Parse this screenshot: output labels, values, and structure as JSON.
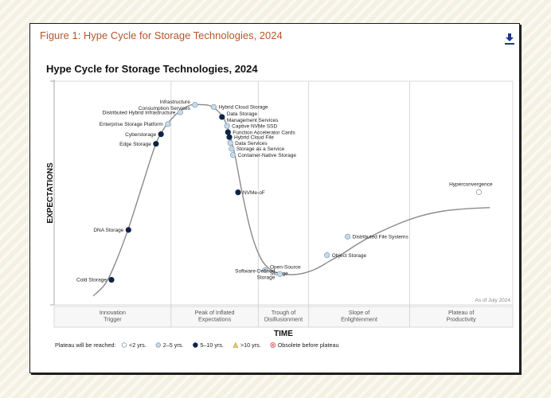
{
  "page": {
    "figure_title": "Figure 1: Hype Cycle for Storage Technologies, 2024",
    "download_icon": "download-icon"
  },
  "chart_data": {
    "type": "scatter",
    "title": "Hype Cycle for Storage Technologies, 2024",
    "xlabel": "TIME",
    "ylabel": "EXPECTATIONS",
    "note": "As of July 2024",
    "xlim": [
      0,
      100
    ],
    "ylim": [
      0,
      100
    ],
    "phases": [
      {
        "label_lines": [
          "Innovation",
          "Trigger"
        ],
        "range": [
          0,
          25.5
        ]
      },
      {
        "label_lines": [
          "Peak of Inflated",
          "Expectations"
        ],
        "range": [
          25.5,
          44.5
        ]
      },
      {
        "label_lines": [
          "Trough of",
          "Disillusionment"
        ],
        "range": [
          44.5,
          55.5
        ]
      },
      {
        "label_lines": [
          "Slope of",
          "Enlightenment"
        ],
        "range": [
          55.5,
          77.5
        ]
      },
      {
        "label_lines": [
          "Plateau of",
          "Productivity"
        ],
        "range": [
          77.5,
          100
        ]
      }
    ],
    "curve": [
      [
        8.5,
        4
      ],
      [
        11,
        9
      ],
      [
        13,
        17
      ],
      [
        16,
        33
      ],
      [
        19,
        52
      ],
      [
        22,
        71
      ],
      [
        24,
        79
      ],
      [
        26,
        84
      ],
      [
        28,
        87.5
      ],
      [
        30,
        89.5
      ],
      [
        32,
        89.5
      ],
      [
        34,
        89
      ],
      [
        36,
        86
      ],
      [
        37.5,
        81
      ],
      [
        39.3,
        68
      ],
      [
        41,
        50
      ],
      [
        43,
        32
      ],
      [
        45,
        21
      ],
      [
        47,
        16
      ],
      [
        49,
        14.2
      ],
      [
        51.5,
        13.5
      ],
      [
        54,
        14
      ],
      [
        57,
        16
      ],
      [
        60,
        19.5
      ],
      [
        63,
        23
      ],
      [
        66,
        27
      ],
      [
        69,
        30.5
      ],
      [
        72,
        33.5
      ],
      [
        76,
        37
      ],
      [
        80,
        39.8
      ],
      [
        85,
        42
      ],
      [
        90,
        43
      ],
      [
        95,
        43.5
      ]
    ],
    "legend": {
      "title": "Plateau will be reached:",
      "items": [
        {
          "key": "lt2",
          "label": "<2 yrs.",
          "marker": "circle",
          "color": "#ffffff"
        },
        {
          "key": "2to5",
          "label": "2–5 yrs.",
          "marker": "circle",
          "color": "#c6dcec"
        },
        {
          "key": "5to10",
          "label": "5–10 yrs.",
          "marker": "circle",
          "color": "#0e2447"
        },
        {
          "key": "gt10",
          "label": ">10 yrs.",
          "marker": "triangle",
          "color": "#e8c96a"
        },
        {
          "key": "obs",
          "label": "Obsolete before plateau",
          "marker": "x-circle",
          "color": "#e06a6a"
        }
      ]
    },
    "points": [
      {
        "name": "Cold Storage",
        "label_lines": [
          "Cold Storage"
        ],
        "x": 12.5,
        "y": 11.2,
        "category": "5to10",
        "anchor": "end"
      },
      {
        "name": "DNA Storage",
        "label_lines": [
          "DNA Storage"
        ],
        "x": 16.2,
        "y": 33.5,
        "category": "5to10",
        "anchor": "end"
      },
      {
        "name": "Edge Storage",
        "label_lines": [
          "Edge Storage"
        ],
        "x": 22.2,
        "y": 72,
        "category": "5to10",
        "anchor": "end"
      },
      {
        "name": "Cyberstorage",
        "label_lines": [
          "Cyberstorage"
        ],
        "x": 23.3,
        "y": 76.3,
        "category": "5to10",
        "anchor": "end"
      },
      {
        "name": "Enterprise Storage Platform",
        "label_lines": [
          "Enterprise Storage Platform"
        ],
        "x": 24.8,
        "y": 80.8,
        "category": "2to5",
        "anchor": "end"
      },
      {
        "name": "Distributed Hybrid Infrastructure",
        "label_lines": [
          "Distributed Hybrid Infrastructure"
        ],
        "x": 27.5,
        "y": 86.1,
        "category": "2to5",
        "anchor": "end"
      },
      {
        "name": "Infrastructure Consumption Services",
        "label_lines": [
          "Infrastructure",
          "Consumption Services"
        ],
        "x": 30.7,
        "y": 89.4,
        "category": "2to5",
        "anchor": "end"
      },
      {
        "name": "Hybrid Cloud Storage",
        "label_lines": [
          "Hybrid Cloud Storage"
        ],
        "x": 34.8,
        "y": 88.5,
        "category": "2to5",
        "anchor": "start"
      },
      {
        "name": "Data Storage Management Services",
        "label_lines": [
          "Data Storage",
          "Management Services"
        ],
        "x": 36.6,
        "y": 84,
        "category": "5to10",
        "anchor": "start"
      },
      {
        "name": "Captive NVMe SSD",
        "label_lines": [
          "Captive NVMe SSD"
        ],
        "x": 37.7,
        "y": 80,
        "category": "2to5",
        "anchor": "start"
      },
      {
        "name": "Function Accelerator Cards",
        "label_lines": [
          "Function Accelerator Cards"
        ],
        "x": 37.9,
        "y": 77.2,
        "category": "5to10",
        "anchor": "start"
      },
      {
        "name": "Hybrid Cloud File",
        "label_lines": [
          "Hybrid Cloud File"
        ],
        "x": 38.2,
        "y": 75,
        "category": "5to10",
        "anchor": "start"
      },
      {
        "name": "Data Services",
        "label_lines": [
          "Data Services"
        ],
        "x": 38.4,
        "y": 72.4,
        "category": "2to5",
        "anchor": "start"
      },
      {
        "name": "Storage as a Service",
        "label_lines": [
          "Storage as a Service"
        ],
        "x": 38.7,
        "y": 69.8,
        "category": "2to5",
        "anchor": "start"
      },
      {
        "name": "Container-Native Storage",
        "label_lines": [
          "Container-Native Storage"
        ],
        "x": 39,
        "y": 67,
        "category": "2to5",
        "anchor": "start"
      },
      {
        "name": "NVMe-oF",
        "label_lines": [
          "NVMe-oF"
        ],
        "x": 40.1,
        "y": 50.3,
        "category": "5to10",
        "anchor": "start"
      },
      {
        "name": "Open-Source Storage",
        "label_lines": [
          "Open-Source",
          "Storage"
        ],
        "x": 46,
        "y": 15.6,
        "category": "2to5",
        "anchor": "start"
      },
      {
        "name": "Software-Defined Storage",
        "label_lines": [
          "Software-Defined",
          "Storage"
        ],
        "x": 49.2,
        "y": 13.8,
        "category": "2to5",
        "anchor": "end"
      },
      {
        "name": "Object Storage",
        "label_lines": [
          "Object Storage"
        ],
        "x": 59.5,
        "y": 22.2,
        "category": "2to5",
        "anchor": "start"
      },
      {
        "name": "Distributed File Systems",
        "label_lines": [
          "Distributed File Systems"
        ],
        "x": 64,
        "y": 30.5,
        "category": "2to5",
        "anchor": "start"
      },
      {
        "name": "Hyperconvergence",
        "label_lines": [
          "Hyperconvergence"
        ],
        "x": 92.6,
        "y": 50.4,
        "category": "lt2",
        "anchor": "middle"
      }
    ]
  }
}
